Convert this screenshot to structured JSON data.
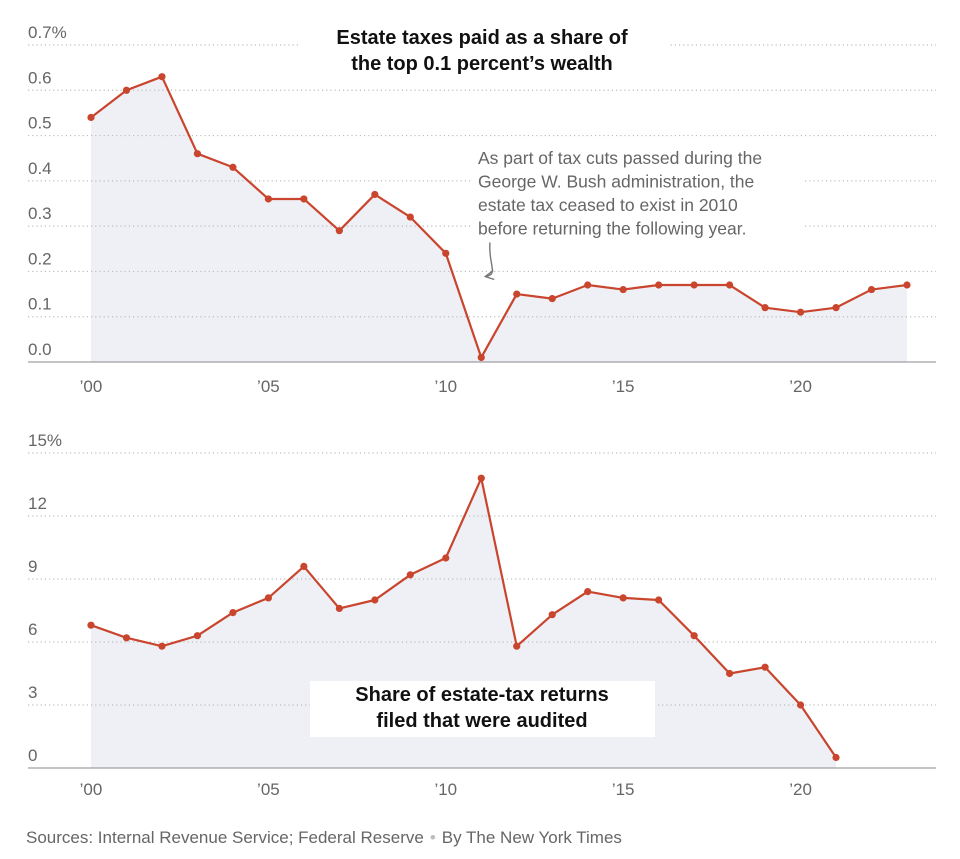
{
  "source": {
    "text": "Sources: Internal Revenue Service; Federal Reserve",
    "separator": "•",
    "credit": "By The New York Times"
  },
  "chart_data": [
    {
      "type": "area",
      "title": "Estate taxes paid as a share of the top 0.1 percent’s wealth",
      "title_lines": [
        "Estate taxes paid as a share of",
        "the top 0.1 percent’s wealth"
      ],
      "xlabel": "",
      "ylabel": "",
      "ylim": [
        0,
        0.7
      ],
      "yticks": [
        {
          "value": 0.7,
          "label": "0.7%"
        },
        {
          "value": 0.6,
          "label": "0.6"
        },
        {
          "value": 0.5,
          "label": "0.5"
        },
        {
          "value": 0.4,
          "label": "0.4"
        },
        {
          "value": 0.3,
          "label": "0.3"
        },
        {
          "value": 0.2,
          "label": "0.2"
        },
        {
          "value": 0.1,
          "label": "0.1"
        },
        {
          "value": 0.0,
          "label": "0.0"
        }
      ],
      "xticks": [
        {
          "value": 2000,
          "label": "’00"
        },
        {
          "value": 2005,
          "label": "’05"
        },
        {
          "value": 2010,
          "label": "’10"
        },
        {
          "value": 2015,
          "label": "’15"
        },
        {
          "value": 2020,
          "label": "’20"
        }
      ],
      "grid": true,
      "x": [
        2000,
        2001,
        2002,
        2003,
        2004,
        2005,
        2006,
        2007,
        2008,
        2009,
        2010,
        2011,
        2012,
        2013,
        2014,
        2015,
        2016,
        2017,
        2018,
        2019,
        2020,
        2021,
        2022,
        2023
      ],
      "values": [
        0.54,
        0.6,
        0.63,
        0.46,
        0.43,
        0.36,
        0.36,
        0.29,
        0.37,
        0.32,
        0.24,
        0.01,
        0.15,
        0.14,
        0.17,
        0.16,
        0.17,
        0.17,
        0.17,
        0.12,
        0.11,
        0.12,
        0.16,
        0.17
      ],
      "annotation": {
        "lines": [
          "As part of tax cuts passed during the",
          "George W. Bush administration, the",
          "estate tax ceased to exist in 2010",
          "before returning the following year."
        ],
        "points_to": 2011
      },
      "colors": {
        "line": "#c9452d",
        "area": "#eef0f6"
      }
    },
    {
      "type": "area",
      "title": "Share of estate-tax returns filed that were audited",
      "title_lines": [
        "Share of estate-tax returns",
        "filed that were audited"
      ],
      "xlabel": "",
      "ylabel": "",
      "ylim": [
        0,
        15
      ],
      "yticks": [
        {
          "value": 15,
          "label": "15%"
        },
        {
          "value": 12,
          "label": "12"
        },
        {
          "value": 9,
          "label": "9"
        },
        {
          "value": 6,
          "label": "6"
        },
        {
          "value": 3,
          "label": "3"
        },
        {
          "value": 0,
          "label": "0"
        }
      ],
      "xticks": [
        {
          "value": 2000,
          "label": "’00"
        },
        {
          "value": 2005,
          "label": "’05"
        },
        {
          "value": 2010,
          "label": "’10"
        },
        {
          "value": 2015,
          "label": "’15"
        },
        {
          "value": 2020,
          "label": "’20"
        }
      ],
      "grid": true,
      "x": [
        2000,
        2001,
        2002,
        2003,
        2004,
        2005,
        2006,
        2007,
        2008,
        2009,
        2010,
        2011,
        2012,
        2013,
        2014,
        2015,
        2016,
        2017,
        2018,
        2019,
        2020,
        2021
      ],
      "values": [
        6.8,
        6.2,
        5.8,
        6.3,
        7.4,
        8.1,
        9.6,
        7.6,
        8.0,
        9.2,
        10.0,
        13.8,
        5.8,
        7.3,
        8.4,
        8.1,
        8.0,
        6.3,
        4.5,
        4.8,
        3.0,
        0.5
      ],
      "colors": {
        "line": "#c9452d",
        "area": "#eef0f6"
      }
    }
  ]
}
